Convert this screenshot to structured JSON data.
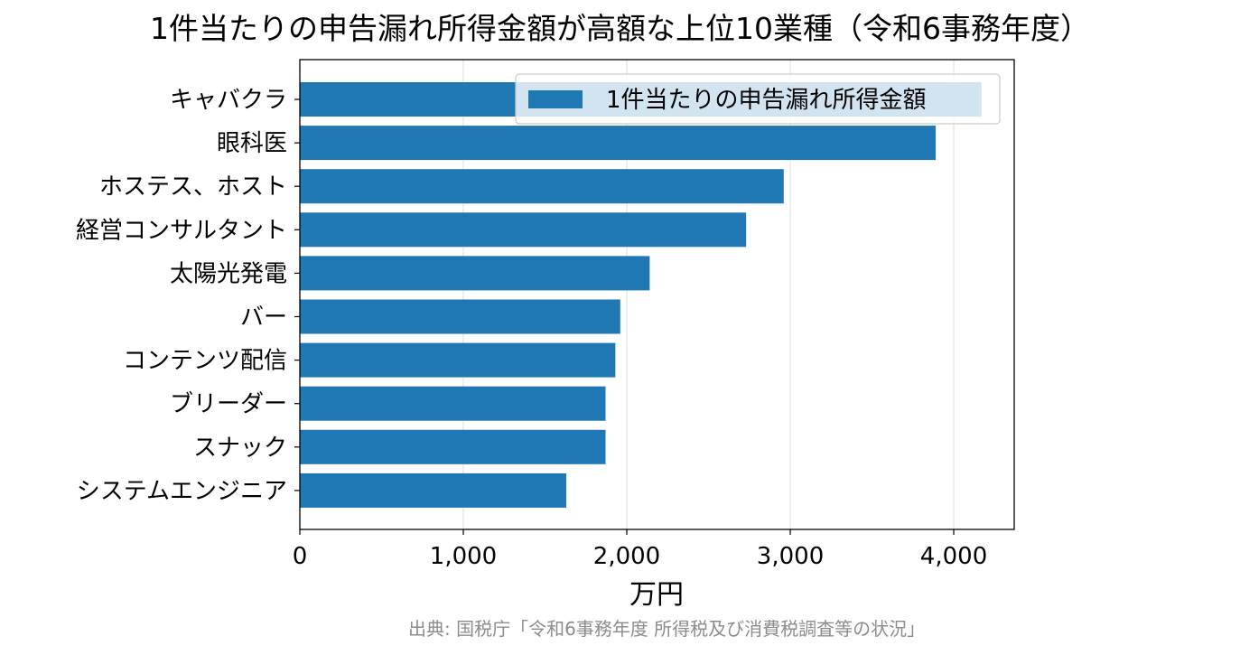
{
  "chart_data": {
    "type": "bar",
    "orientation": "horizontal",
    "title": "1件当たりの申告漏れ所得金額が高額な上位10業種（令和6事務年度）",
    "categories": [
      "キャバクラ",
      "眼科医",
      "ホステス、ホスト",
      "経営コンサルタント",
      "太陽光発電",
      "バー",
      "コンテンツ配信",
      "ブリーダー",
      "スナック",
      "システムエンジニア"
    ],
    "series": [
      {
        "name": "1件当たりの申告漏れ所得金額",
        "values": [
          4170,
          3890,
          2960,
          2730,
          2140,
          1960,
          1930,
          1870,
          1870,
          1630
        ],
        "color": "#1f77b4"
      }
    ],
    "xlabel": "万円",
    "ylabel": "",
    "xlim": [
      0,
      4370
    ],
    "xticks": [
      0,
      1000,
      2000,
      3000,
      4000
    ],
    "xtick_labels": [
      "0",
      "1,000",
      "2,000",
      "3,000",
      "4,000"
    ],
    "grid": "x",
    "legend_position": "upper-right",
    "source": "出典: 国税庁「令和6事務年度 所得税及び消費税調査等の状況」"
  }
}
